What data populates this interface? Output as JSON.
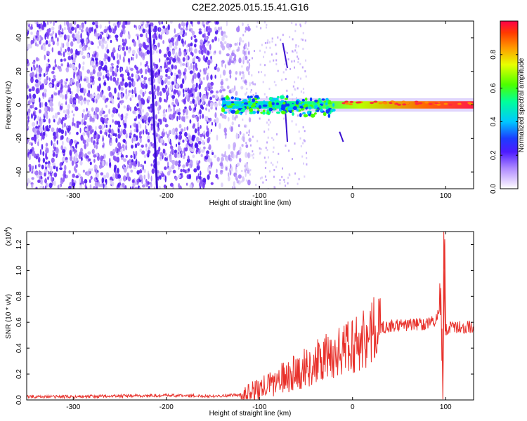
{
  "figure": {
    "title": "C2E2.2025.015.15.41.G16"
  },
  "chart_data": [
    {
      "type": "heatmap",
      "xlabel": "Height of straight line (km)",
      "ylabel": "Frequency (Hz)",
      "xlim": [
        -350,
        130
      ],
      "ylim": [
        -50,
        50
      ],
      "xticks": [
        "-300",
        "-200",
        "-100",
        "0",
        "100"
      ],
      "yticks": [
        "-40",
        "-20",
        "0",
        "20",
        "40"
      ],
      "colorbar": {
        "label": "Normalized spectral amplitude",
        "range": [
          0,
          1
        ],
        "ticks": [
          "0.0",
          "0.2",
          "0.4",
          "0.6",
          "0.8"
        ]
      },
      "features": [
        {
          "desc": "broadband noise",
          "x_range": [
            -350,
            -120
          ],
          "y_range": [
            -50,
            50
          ]
        },
        {
          "desc": "diagonal streak",
          "from": [
            -218,
            48
          ],
          "to": [
            -210,
            -50
          ]
        },
        {
          "desc": "diagonal streak",
          "from": [
            -75,
            37
          ],
          "to": [
            -70,
            22
          ]
        },
        {
          "desc": "signal band near 0 Hz",
          "x_range": [
            -140,
            130
          ],
          "center_hz": 0
        }
      ]
    },
    {
      "type": "line",
      "xlabel": "Height of straight line (km)",
      "ylabel": "SNR (10 * v/v)",
      "yscale_note": "(x10",
      "yscale_exp": "4",
      "xlim": [
        -350,
        130
      ],
      "ylim": [
        0,
        1.3
      ],
      "xticks": [
        "-300",
        "-200",
        "-100",
        "0",
        "100"
      ],
      "yticks": [
        "0.0",
        "0.2",
        "0.4",
        "0.6",
        "0.8",
        "1.0",
        "1.2"
      ],
      "color": "#e8302a",
      "series": [
        {
          "x": [
            -350,
            -300,
            -250,
            -200,
            -150,
            -120,
            -100,
            -80,
            -60,
            -40,
            -20,
            0,
            10,
            20,
            30,
            40,
            60,
            80,
            90,
            95,
            97,
            99,
            100,
            110,
            120,
            130
          ],
          "y": [
            0.025,
            0.025,
            0.03,
            0.035,
            0.03,
            0.04,
            0.08,
            0.15,
            0.22,
            0.28,
            0.35,
            0.42,
            0.47,
            0.52,
            0.56,
            0.57,
            0.58,
            0.59,
            0.62,
            0.7,
            0.05,
            1.3,
            0.55,
            0.56,
            0.56,
            0.57
          ]
        }
      ]
    }
  ]
}
